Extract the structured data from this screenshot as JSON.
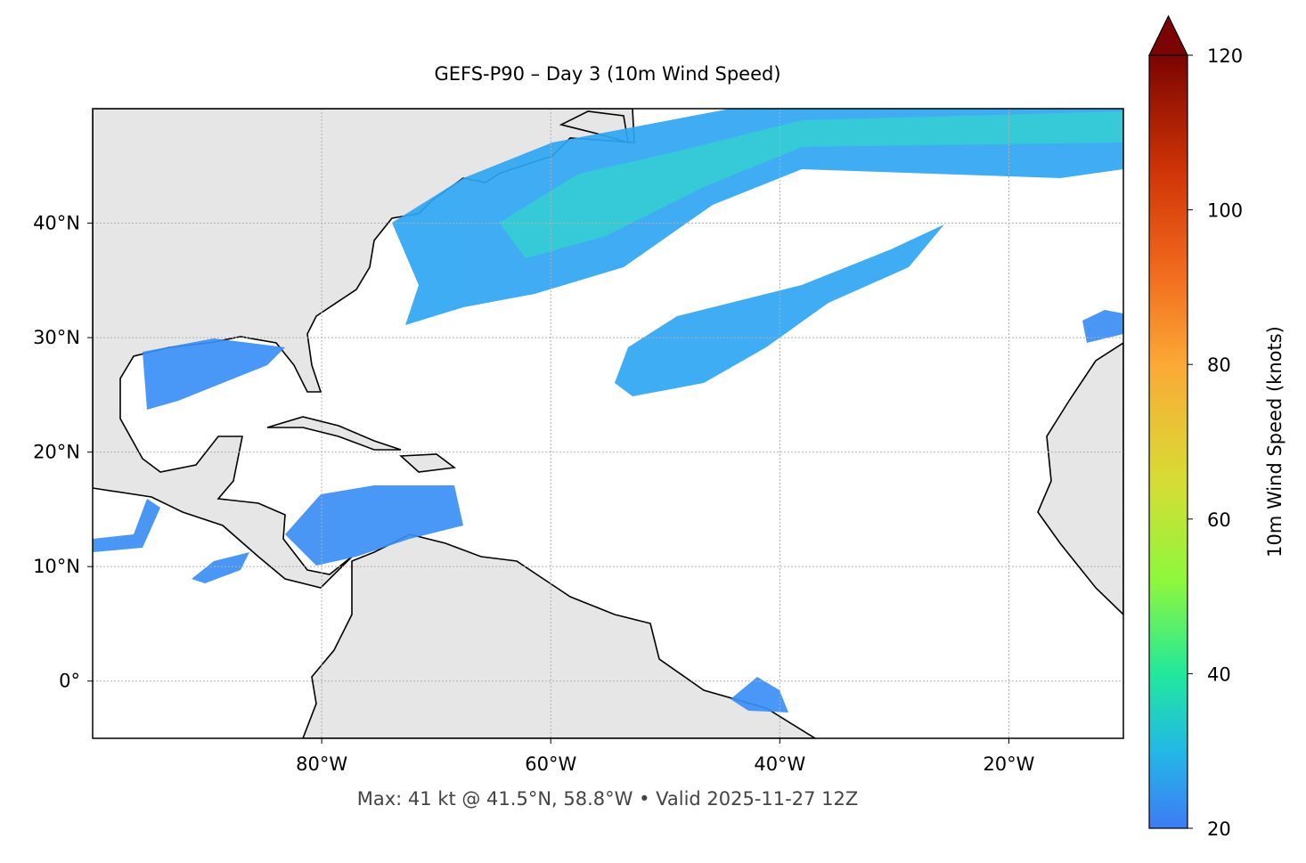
{
  "map": {
    "title": "GEFS-P90 – Day 3 (10m Wind Speed)",
    "footer": "Max: 41 kt @ 41.5°N, 58.8°W • Valid 2025-11-27 12Z",
    "xlim": [
      -100,
      -10
    ],
    "ylim": [
      -5,
      50
    ],
    "xticks": [
      {
        "value": -80,
        "label": "80°W"
      },
      {
        "value": -60,
        "label": "60°W"
      },
      {
        "value": -40,
        "label": "40°W"
      },
      {
        "value": -20,
        "label": "20°W"
      }
    ],
    "yticks": [
      {
        "value": 0,
        "label": "0°"
      },
      {
        "value": 10,
        "label": "10°N"
      },
      {
        "value": 20,
        "label": "20°N"
      },
      {
        "value": 30,
        "label": "30°N"
      },
      {
        "value": 40,
        "label": "40°N"
      }
    ],
    "grid": true,
    "colorbar": {
      "label": "10m Wind Speed (knots)",
      "clim": [
        20,
        120
      ],
      "cticks": [
        20,
        40,
        60,
        80,
        100,
        120
      ],
      "extend": "max"
    }
  }
}
